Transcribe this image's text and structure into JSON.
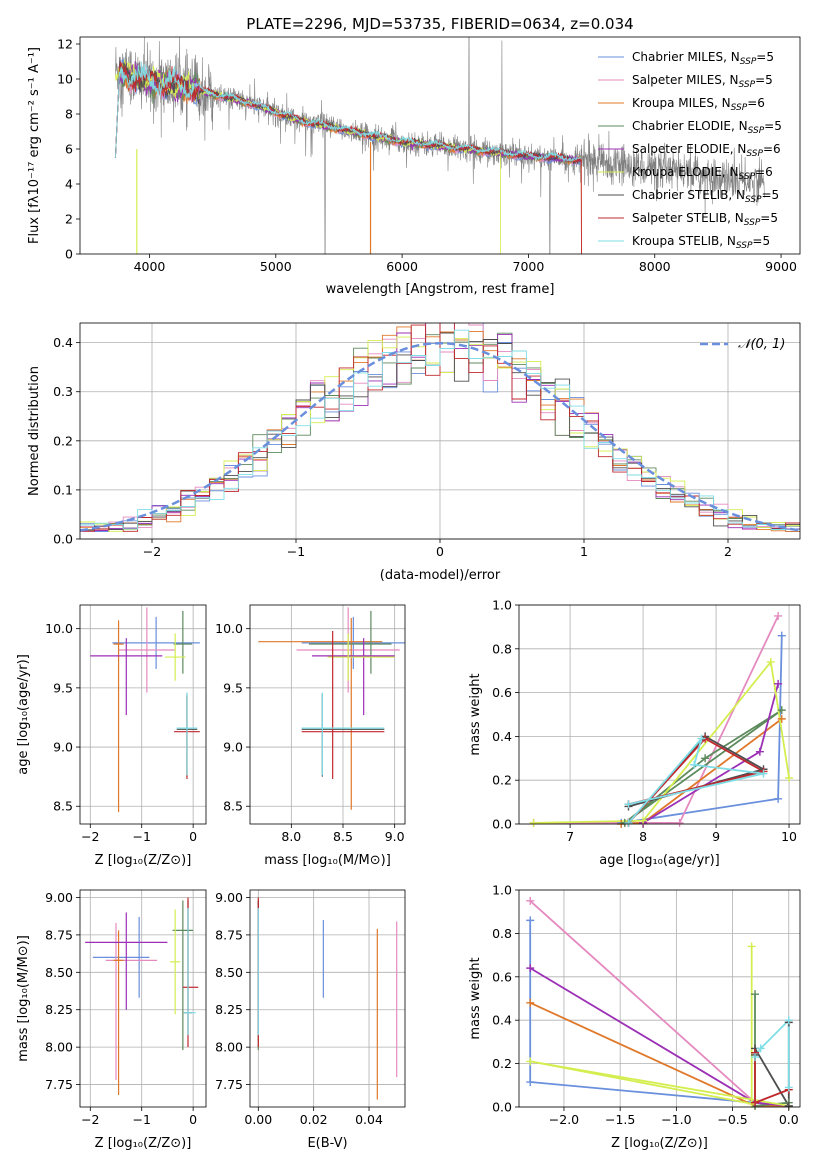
{
  "figure": {
    "title": "PLATE=2296, MJD=53735, FIBERID=0634, z=0.034"
  },
  "colors": {
    "grid": "#b0b0b0",
    "observed": "#808080",
    "gaussian": "#6a8fdc"
  },
  "models": [
    {
      "name": "Chabrier MILES",
      "n_ssp": "5",
      "color": "#6a8fdc"
    },
    {
      "name": "Salpeter MILES",
      "n_ssp": "5",
      "color": "#e58ac0"
    },
    {
      "name": "Kroupa MILES",
      "n_ssp": "6",
      "color": "#e0782a"
    },
    {
      "name": "Chabrier ELODIE",
      "n_ssp": "5",
      "color": "#5d8a5d"
    },
    {
      "name": "Salpeter ELODIE",
      "n_ssp": "6",
      "color": "#9b2fb5"
    },
    {
      "name": "Kroupa ELODIE",
      "n_ssp": "6",
      "color": "#d4ee50"
    },
    {
      "name": "Chabrier STELIB",
      "n_ssp": "5",
      "color": "#4d4d4d"
    },
    {
      "name": "Salpeter STELIB",
      "n_ssp": "5",
      "color": "#c0282d"
    },
    {
      "name": "Kroupa STELIB",
      "n_ssp": "5",
      "color": "#7fdde6"
    }
  ],
  "chart_data": [
    {
      "id": "spectrum",
      "type": "line",
      "xlabel": "wavelength [Angstrom, rest frame]",
      "ylabel": "Flux [fλ10⁻¹⁷ erg cm⁻² s⁻¹ A⁻¹]",
      "xlim": [
        3450,
        9150
      ],
      "ylim": [
        0,
        12.4
      ],
      "xticks": [
        4000,
        5000,
        6000,
        7000,
        8000,
        9000
      ],
      "yticks": [
        0,
        2,
        4,
        6,
        8,
        10,
        12
      ],
      "observed_range": [
        3730,
        8870
      ],
      "continuum": [
        [
          3730,
          10.5
        ],
        [
          4000,
          9.8
        ],
        [
          4300,
          9.5
        ],
        [
          4800,
          8.6
        ],
        [
          5200,
          7.6
        ],
        [
          5600,
          7.0
        ],
        [
          6000,
          6.4
        ],
        [
          6500,
          6.0
        ],
        [
          7000,
          5.6
        ],
        [
          7500,
          5.3
        ],
        [
          8000,
          4.9
        ],
        [
          8500,
          4.3
        ],
        [
          8870,
          4.1
        ]
      ],
      "model_range": [
        3730,
        7420
      ],
      "legend": "top-right"
    },
    {
      "id": "residuals",
      "type": "line",
      "xlabel": "(data-model)/error",
      "ylabel": "Normed distribution",
      "xlim": [
        -2.5,
        2.5
      ],
      "ylim": [
        0,
        0.44
      ],
      "xticks": [
        -2,
        -1,
        0,
        1,
        2
      ],
      "yticks": [
        0.0,
        0.1,
        0.2,
        0.3,
        0.4
      ],
      "bin_width": 0.1,
      "gaussian_label": "𝒩(0, 1)",
      "legend": "top-right"
    },
    {
      "id": "age_vs_Z",
      "type": "scatter",
      "xlabel": "Z [log₁₀(Z/Z⊙)]",
      "ylabel": "age  [log₁₀(age/yr)]",
      "xlim": [
        -2.2,
        0.25
      ],
      "ylim": [
        8.35,
        10.2
      ],
      "xticks": [
        -2,
        -1,
        0
      ],
      "yticks": [
        8.5,
        9.0,
        9.5,
        10.0
      ],
      "points": [
        [
          -0.72,
          9.88,
          0.85,
          0.85,
          0.22,
          0.22
        ],
        [
          -0.9,
          9.82,
          0.55,
          0.55,
          0.36,
          0.36
        ],
        [
          -1.45,
          9.87,
          0.1,
          0.1,
          1.42,
          0.2
        ],
        [
          -0.2,
          9.87,
          0.18,
          0.18,
          0.25,
          0.28
        ],
        [
          -1.3,
          9.77,
          0.7,
          0.7,
          0.5,
          0.15
        ],
        [
          -0.35,
          9.76,
          0.2,
          0.2,
          0.2,
          0.2
        ],
        [
          -0.12,
          9.15,
          0.2,
          0.2,
          0.4,
          0.3
        ],
        [
          -0.12,
          9.13,
          0.25,
          0.25,
          0.4,
          0.3
        ],
        [
          -0.12,
          9.16,
          0.2,
          0.2,
          0.4,
          0.3
        ]
      ]
    },
    {
      "id": "age_vs_mass",
      "type": "scatter",
      "xlabel": "mass [log₁₀(M/M⊙)]",
      "ylabel": "",
      "xlim": [
        7.6,
        9.1
      ],
      "ylim": [
        8.35,
        10.2
      ],
      "xticks": [
        8.0,
        8.5,
        9.0
      ],
      "yticks": [
        8.5,
        9.0,
        9.5,
        10.0
      ],
      "points": [
        [
          8.6,
          9.88,
          0.5,
          0.5,
          0.22,
          0.22
        ],
        [
          8.55,
          9.82,
          0.5,
          0.5,
          0.36,
          0.36
        ],
        [
          8.58,
          9.89,
          0.9,
          0.3,
          1.42,
          0.2
        ],
        [
          8.77,
          9.87,
          0.6,
          0.2,
          0.25,
          0.28
        ],
        [
          8.7,
          9.77,
          0.5,
          0.3,
          0.5,
          0.15
        ],
        [
          8.55,
          9.76,
          0.2,
          0.45,
          0.2,
          0.2
        ],
        [
          8.3,
          9.15,
          0.2,
          0.6,
          0.4,
          0.3
        ],
        [
          8.4,
          9.13,
          0.3,
          0.5,
          0.4,
          0.85
        ],
        [
          8.3,
          9.16,
          0.2,
          0.6,
          0.4,
          0.3
        ]
      ]
    },
    {
      "id": "weight_vs_age",
      "type": "line",
      "xlabel": "age  [log₁₀(age/yr)]",
      "ylabel": "mass weight",
      "xlim": [
        6.3,
        10.15
      ],
      "ylim": [
        0,
        1.0
      ],
      "xticks": [
        7,
        8,
        9,
        10
      ],
      "yticks": [
        0.0,
        0.2,
        0.4,
        0.6,
        0.8,
        1.0
      ],
      "series": [
        {
          "x": [
            7.7,
            9.85,
            9.9
          ],
          "y": [
            0.005,
            0.115,
            0.86
          ]
        },
        {
          "x": [
            6.5,
            8.5,
            9.85
          ],
          "y": [
            0.005,
            0.005,
            0.95
          ]
        },
        {
          "x": [
            7.7,
            8.0,
            9.9
          ],
          "y": [
            0.0,
            0.005,
            0.48
          ]
        },
        {
          "x": [
            7.75,
            8.85,
            9.9,
            7.75
          ],
          "y": [
            0.005,
            0.3,
            0.52,
            0.005
          ]
        },
        {
          "x": [
            8.0,
            9.6,
            9.85
          ],
          "y": [
            0.005,
            0.33,
            0.64
          ]
        },
        {
          "x": [
            6.5,
            8.0,
            9.75,
            10.0
          ],
          "y": [
            0.005,
            0.015,
            0.74,
            0.21
          ]
        },
        {
          "x": [
            7.8,
            8.85,
            9.65,
            7.8
          ],
          "y": [
            0.005,
            0.4,
            0.25,
            0.08
          ]
        },
        {
          "x": [
            7.8,
            8.85,
            9.65,
            7.8
          ],
          "y": [
            0.005,
            0.39,
            0.24,
            0.09
          ]
        },
        {
          "x": [
            7.8,
            8.8,
            8.7,
            9.65,
            7.8
          ],
          "y": [
            0.005,
            0.39,
            0.27,
            0.23,
            0.09
          ]
        }
      ]
    },
    {
      "id": "mass_vs_Z",
      "type": "scatter",
      "xlabel": "Z [log₁₀(Z/Z⊙)]",
      "ylabel": "mass [log₁₀(M/M⊙)]",
      "xlim": [
        -2.2,
        0.25
      ],
      "ylim": [
        7.6,
        9.05
      ],
      "xticks": [
        -2,
        -1,
        0
      ],
      "yticks": [
        7.75,
        8.0,
        8.25,
        8.5,
        8.75,
        9.0
      ],
      "points": [
        [
          -1.05,
          8.6,
          0.9,
          0.2,
          0.27,
          0.27
        ],
        [
          -1.5,
          8.58,
          0.2,
          0.8,
          0.8,
          0.25
        ],
        [
          -1.45,
          8.58,
          0.1,
          0.1,
          0.9,
          0.2
        ],
        [
          -0.2,
          8.78,
          0.2,
          0.2,
          0.8,
          0.2
        ],
        [
          -1.3,
          8.7,
          0.8,
          0.8,
          0.45,
          0.2
        ],
        [
          -0.35,
          8.57,
          0.1,
          0.1,
          0.35,
          0.35
        ],
        [
          -0.1,
          8.23,
          0.08,
          0.08,
          0.15,
          0.75
        ],
        [
          -0.1,
          8.4,
          0.1,
          0.2,
          0.4,
          0.6
        ],
        [
          -0.1,
          8.23,
          0.08,
          0.15,
          0.15,
          0.7
        ]
      ]
    },
    {
      "id": "mass_vs_ebv",
      "type": "scatter",
      "xlabel": "E(B-V)",
      "ylabel": "",
      "xlim": [
        -0.003,
        0.053
      ],
      "ylim": [
        7.6,
        9.05
      ],
      "xticks": [
        0.0,
        0.02,
        0.04
      ],
      "yticks": [
        7.75,
        8.0,
        8.25,
        8.5,
        8.75,
        9.0
      ],
      "points": [
        [
          0.0235,
          8.6,
          0,
          0,
          0.27,
          0.25
        ],
        [
          0.05,
          8.4,
          0,
          0,
          0.6,
          0.44
        ],
        [
          0.043,
          8.23,
          0,
          0,
          0.58,
          0.56
        ],
        [
          0.0,
          8.78,
          0,
          0,
          0.8,
          0.2
        ],
        [
          0.0,
          8.7,
          0,
          0,
          0.45,
          0.2
        ],
        [
          0.0,
          8.57,
          0,
          0,
          0.35,
          0.35
        ],
        [
          0.0,
          8.23,
          0,
          0,
          0.15,
          0.75
        ],
        [
          0.0,
          8.4,
          0,
          0,
          0.4,
          0.6
        ],
        [
          0.0,
          8.23,
          0,
          0,
          0.15,
          0.7
        ]
      ]
    },
    {
      "id": "weight_vs_Z",
      "type": "line",
      "xlabel": "Z [log₁₀(Z/Z⊙)]",
      "ylabel": "mass weight",
      "xlim": [
        -2.4,
        0.1
      ],
      "ylim": [
        0,
        1.0
      ],
      "xticks": [
        -2.0,
        -1.5,
        -1.0,
        -0.5,
        0.0
      ],
      "yticks": [
        0.0,
        0.2,
        0.4,
        0.6,
        0.8,
        1.0
      ],
      "series": [
        {
          "x": [
            -2.3,
            -2.3,
            -0.3,
            0.0
          ],
          "y": [
            0.86,
            0.115,
            0.02,
            0.005
          ]
        },
        {
          "x": [
            -2.3,
            -0.3,
            0.0
          ],
          "y": [
            0.95,
            0.02,
            0.005
          ]
        },
        {
          "x": [
            -2.3,
            -0.3,
            0.0
          ],
          "y": [
            0.48,
            0.005,
            0.005
          ]
        },
        {
          "x": [
            -0.3,
            -0.3,
            0.0
          ],
          "y": [
            0.52,
            0.005,
            0.02
          ]
        },
        {
          "x": [
            -2.3,
            -0.3,
            0.0
          ],
          "y": [
            0.64,
            0.02,
            0.005
          ]
        },
        {
          "x": [
            -0.33,
            -0.33,
            -2.3,
            0.0
          ],
          "y": [
            0.74,
            0.015,
            0.21,
            0.005
          ]
        },
        {
          "x": [
            -0.3,
            -0.3,
            0.0,
            0.0
          ],
          "y": [
            0.24,
            0.27,
            0.005,
            0.39
          ]
        },
        {
          "x": [
            -0.3,
            -0.3,
            0.0
          ],
          "y": [
            0.25,
            0.02,
            0.08
          ]
        },
        {
          "x": [
            -0.3,
            -0.25,
            0.0,
            0.0
          ],
          "y": [
            0.23,
            0.27,
            0.4,
            0.09
          ]
        }
      ]
    }
  ]
}
